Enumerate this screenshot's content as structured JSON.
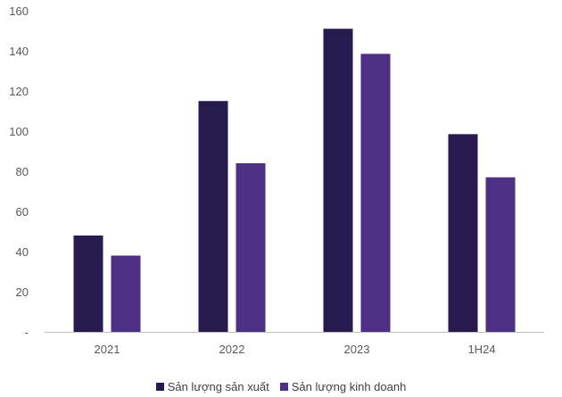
{
  "chart_data": {
    "type": "bar",
    "categories": [
      "2021",
      "2022",
      "2023",
      "1H24"
    ],
    "series": [
      {
        "name": "Sản lượng sản xuất",
        "values": [
          48,
          115,
          151,
          98.5
        ],
        "color": "#271a4f"
      },
      {
        "name": "Sản lượng kinh doanh",
        "values": [
          38,
          84,
          138.5,
          77
        ],
        "color": "#4e2f86"
      }
    ],
    "yticks": [
      "-",
      "20",
      "40",
      "60",
      "80",
      "100",
      "120",
      "140",
      "160"
    ],
    "ylim": [
      0,
      160
    ],
    "grid": false,
    "legend_position": "bottom"
  }
}
